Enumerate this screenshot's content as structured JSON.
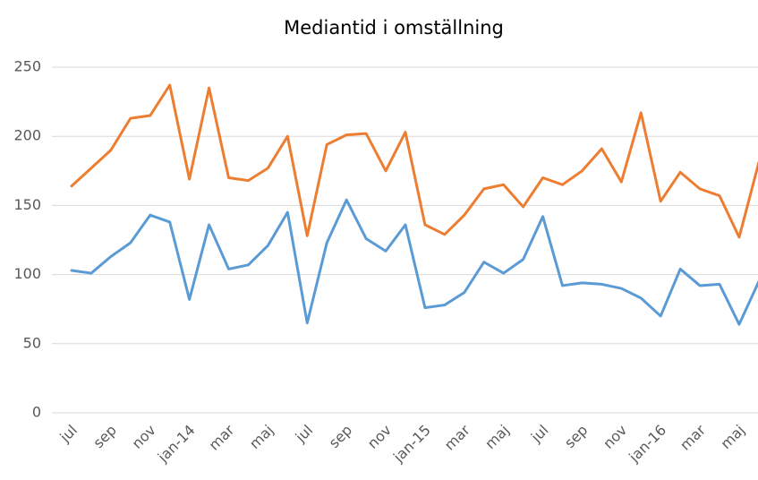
{
  "chart_data": {
    "type": "line",
    "title": "Mediantid i omställning",
    "categories": [
      "jul",
      null,
      "sep",
      null,
      "nov",
      null,
      "jan-14",
      null,
      "mar",
      null,
      "maj",
      null,
      "jul",
      null,
      "sep",
      null,
      "nov",
      null,
      "jan-15",
      null,
      "mar",
      null,
      "maj",
      null,
      "jul",
      null,
      "sep",
      null,
      "nov",
      null,
      "jan-16",
      null,
      "mar",
      null,
      "maj",
      null
    ],
    "series": [
      {
        "color": "#ed7d31",
        "values": [
          164,
          177,
          190,
          213,
          215,
          237,
          169,
          235,
          170,
          168,
          177,
          200,
          128,
          194,
          201,
          202,
          175,
          203,
          136,
          129,
          143,
          162,
          165,
          149,
          170,
          165,
          175,
          191,
          167,
          217,
          153,
          174,
          162,
          157,
          127,
          181
        ]
      },
      {
        "color": "#5b9bd5",
        "values": [
          103,
          101,
          113,
          123,
          143,
          138,
          82,
          136,
          104,
          107,
          121,
          145,
          65,
          123,
          154,
          126,
          117,
          136,
          76,
          78,
          87,
          109,
          101,
          111,
          142,
          92,
          94,
          93,
          90,
          83,
          70,
          104,
          92,
          93,
          64,
          95
        ]
      }
    ],
    "ylim": [
      0,
      250
    ],
    "yticks": [
      0,
      50,
      100,
      150,
      200,
      250
    ],
    "grid": true
  }
}
